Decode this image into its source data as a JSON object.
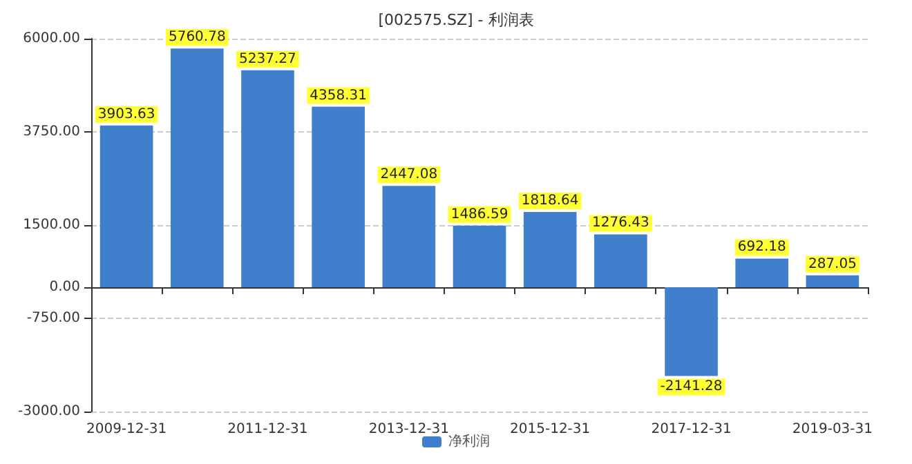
{
  "chart_data": {
    "type": "bar",
    "title": "[002575.SZ] - 利润表",
    "categories": [
      "2009-12-31",
      null,
      "2011-12-31",
      null,
      "2013-12-31",
      null,
      "2015-12-31",
      null,
      "2017-12-31",
      null,
      "2019-03-31"
    ],
    "series": [
      {
        "name": "净利润",
        "color": "#3f7fcc",
        "values": [
          3903.63,
          5760.78,
          5237.27,
          4358.31,
          2447.08,
          1486.59,
          1818.64,
          1276.43,
          -2141.28,
          692.18,
          287.05
        ]
      }
    ],
    "ylim": [
      -3000,
      6000
    ],
    "yticks": [
      {
        "value": -3000,
        "label": "-3000.00"
      },
      {
        "value": -750,
        "label": "-750.00"
      },
      {
        "value": 0,
        "label": "0.00"
      },
      {
        "value": 1500,
        "label": "1500.00"
      },
      {
        "value": 3750,
        "label": "3750.00"
      },
      {
        "value": 6000,
        "label": "6000.00"
      }
    ],
    "data_labels": true,
    "grid": "y",
    "legend": "bottom"
  }
}
